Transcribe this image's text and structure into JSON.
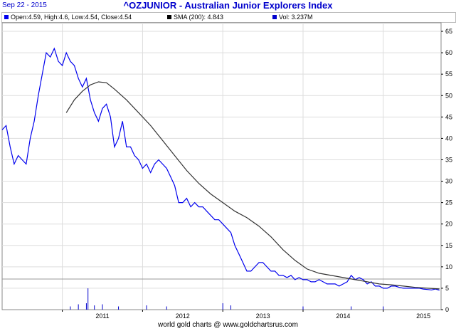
{
  "header": {
    "date": "Sep 22 - 2015",
    "title": "^OZJUNIOR - Australian Junior Explorers Index"
  },
  "legend": {
    "ohlc": "Open:4.59, High:4.6, Low:4.54, Close:4.54",
    "sma": "SMA (200): 4.843",
    "vol": "Vol: 3.237M"
  },
  "footer": "world gold charts @ www.goldchartsrus.com",
  "colors": {
    "price": "#0000ee",
    "sma": "#333333",
    "volume": "#0000cc",
    "grid": "#dddddd",
    "title": "#0000cc"
  },
  "chart_data": {
    "type": "line",
    "x_range": [
      "2010-04",
      "2015-09"
    ],
    "ylim": [
      0,
      67
    ],
    "y_ticks": [
      0,
      5,
      10,
      15,
      20,
      25,
      30,
      35,
      40,
      45,
      50,
      55,
      60,
      65
    ],
    "y_tick_labels": [
      "0",
      "5",
      "10",
      "15",
      "20",
      "25",
      "30",
      "35",
      "40",
      "45",
      "50",
      "55",
      "60",
      "65"
    ],
    "x_ticks": [
      2011,
      2012,
      2013,
      2014,
      2015
    ],
    "x_tick_labels": [
      "2011",
      "2012",
      "2013",
      "2014",
      "2015"
    ],
    "grid": true,
    "series": [
      {
        "key": "price",
        "x": [
          2010.25,
          2010.3,
          2010.35,
          2010.4,
          2010.45,
          2010.5,
          2010.55,
          2010.6,
          2010.65,
          2010.7,
          2010.75,
          2010.8,
          2010.85,
          2010.9,
          2010.95,
          2011.0,
          2011.05,
          2011.1,
          2011.15,
          2011.2,
          2011.25,
          2011.3,
          2011.35,
          2011.4,
          2011.45,
          2011.5,
          2011.55,
          2011.6,
          2011.65,
          2011.7,
          2011.75,
          2011.8,
          2011.85,
          2011.9,
          2011.95,
          2012.0,
          2012.05,
          2012.1,
          2012.15,
          2012.2,
          2012.25,
          2012.3,
          2012.35,
          2012.4,
          2012.45,
          2012.5,
          2012.55,
          2012.6,
          2012.65,
          2012.7,
          2012.75,
          2012.8,
          2012.85,
          2012.9,
          2012.95,
          2013.0,
          2013.05,
          2013.1,
          2013.15,
          2013.2,
          2013.25,
          2013.3,
          2013.35,
          2013.4,
          2013.45,
          2013.5,
          2013.55,
          2013.6,
          2013.65,
          2013.7,
          2013.75,
          2013.8,
          2013.85,
          2013.9,
          2013.95,
          2014.0,
          2014.05,
          2014.1,
          2014.15,
          2014.2,
          2014.25,
          2014.3,
          2014.35,
          2014.4,
          2014.45,
          2014.5,
          2014.55,
          2014.6,
          2014.65,
          2014.7,
          2014.75,
          2014.8,
          2014.85,
          2014.9,
          2014.95,
          2015.0,
          2015.05,
          2015.1,
          2015.15,
          2015.2,
          2015.25,
          2015.3,
          2015.35,
          2015.4,
          2015.45,
          2015.5,
          2015.55,
          2015.6,
          2015.65,
          2015.7
        ],
        "y": [
          42,
          43,
          38,
          34,
          36,
          35,
          34,
          40,
          44,
          50,
          55,
          60,
          59,
          61,
          58,
          57,
          60,
          58,
          57,
          54,
          52,
          54,
          49,
          46,
          44,
          47,
          48,
          45,
          38,
          40,
          44,
          38,
          38,
          36,
          35,
          33,
          34,
          32,
          34,
          35,
          34,
          33,
          31,
          29,
          25,
          25,
          26,
          24,
          25,
          24,
          24,
          23,
          22,
          21,
          21,
          20,
          19,
          18,
          15,
          13,
          11,
          9,
          9,
          10,
          11,
          11,
          10,
          9,
          9,
          8,
          8,
          7.5,
          8,
          7,
          7.5,
          7,
          7,
          6.5,
          6.5,
          7,
          6.5,
          6,
          6,
          6,
          5.5,
          6,
          6.5,
          8,
          7,
          7.5,
          7,
          6,
          6.5,
          5.5,
          5.5,
          5,
          5,
          5.5,
          5.5,
          5.2,
          5,
          5,
          5,
          5,
          5,
          4.8,
          4.7,
          4.6,
          4.8,
          4.54
        ]
      },
      {
        "key": "sma",
        "name": "SMA (200)",
        "x": [
          2011.05,
          2011.15,
          2011.25,
          2011.35,
          2011.45,
          2011.55,
          2011.65,
          2011.8,
          2011.95,
          2012.1,
          2012.25,
          2012.4,
          2012.55,
          2012.7,
          2012.85,
          2013.0,
          2013.15,
          2013.3,
          2013.45,
          2013.6,
          2013.75,
          2013.9,
          2014.05,
          2014.2,
          2014.35,
          2014.5,
          2014.65,
          2014.8,
          2014.95,
          2015.1,
          2015.25,
          2015.4,
          2015.55,
          2015.7
        ],
        "y": [
          46,
          49,
          51,
          52.5,
          53.2,
          53,
          51.5,
          49,
          46,
          43,
          39.5,
          36,
          32.5,
          29.5,
          27,
          25,
          23,
          21.5,
          19.5,
          17,
          14,
          11.5,
          9.5,
          8.5,
          8,
          7.5,
          7,
          6.5,
          6,
          5.8,
          5.5,
          5.2,
          5,
          4.843
        ]
      }
    ],
    "volume_spikes": {
      "x": [
        2011.1,
        2011.2,
        2011.3,
        2011.32,
        2011.4,
        2011.5,
        2011.7,
        2012.05,
        2012.3,
        2013.0,
        2013.1,
        2014.0,
        2014.6,
        2015.0
      ],
      "rel_height": [
        0.15,
        0.25,
        0.3,
        1.0,
        0.2,
        0.25,
        0.15,
        0.2,
        0.15,
        0.3,
        0.2,
        0.15,
        0.15,
        0.15
      ]
    }
  }
}
